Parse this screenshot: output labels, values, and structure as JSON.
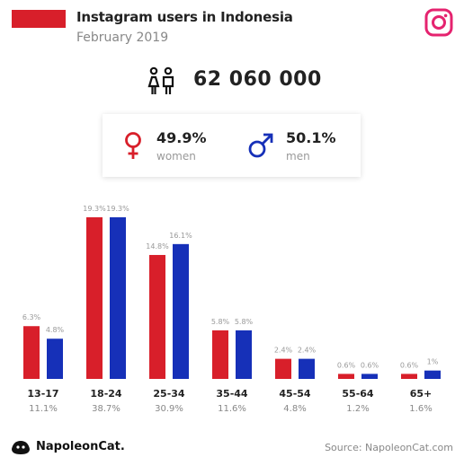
{
  "header": {
    "title": "Instagram users in Indonesia",
    "subtitle": "February 2019",
    "flag_color": "#d81f2a",
    "brand_icon": "instagram-icon"
  },
  "total": {
    "value": "62 060 000",
    "icon": "people-icon"
  },
  "gender": {
    "women": {
      "pct": "49.9%",
      "label": "women",
      "color": "#d81f2a",
      "icon": "female-icon"
    },
    "men": {
      "pct": "50.1%",
      "label": "men",
      "color": "#1630b8",
      "icon": "male-icon"
    }
  },
  "chart_data": {
    "type": "bar",
    "categories": [
      "13-17",
      "18-24",
      "25-34",
      "35-44",
      "45-54",
      "55-64",
      "65+"
    ],
    "category_totals": [
      "11.1%",
      "38.7%",
      "30.9%",
      "11.6%",
      "4.8%",
      "1.2%",
      "1.6%"
    ],
    "series": [
      {
        "values": [
          6.3,
          19.3,
          14.8,
          5.8,
          2.4,
          0.6,
          0.6
        ],
        "labels": [
          "6.3%",
          "19.3%",
          "14.8%",
          "5.8%",
          "2.4%",
          "0.6%",
          "0.6%"
        ],
        "color": "#d81f2a"
      },
      {
        "values": [
          4.8,
          19.3,
          16.1,
          5.8,
          2.4,
          0.6,
          1.0
        ],
        "labels": [
          "4.8%",
          "19.3%",
          "16.1%",
          "5.8%",
          "2.4%",
          "0.6%",
          "1%"
        ],
        "color": "#1630b8"
      }
    ],
    "ylim": [
      0,
      19.3
    ],
    "grid": false,
    "legend": "none"
  },
  "footer": {
    "brand": "NapoleonCat.",
    "source": "Source: NapoleonCat.com",
    "logo_icon": "napoleoncat-logo-icon"
  }
}
